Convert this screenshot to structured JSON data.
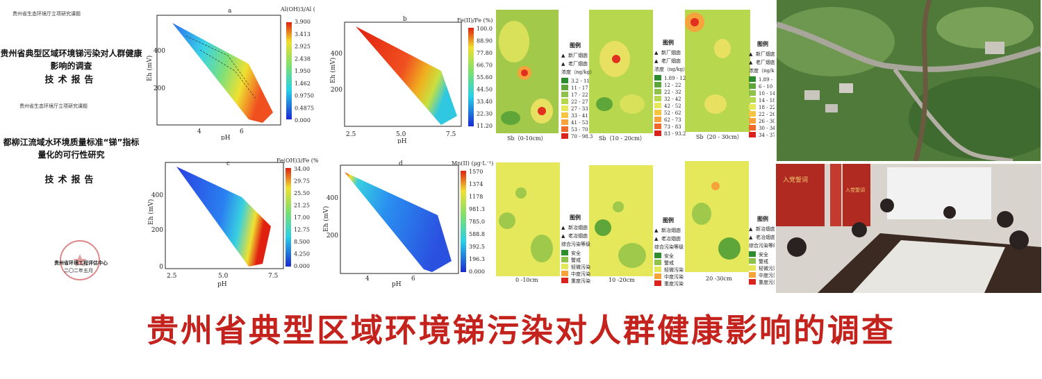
{
  "left_docs": {
    "doc1": {
      "header": "贵州省生态环境厅立项研究课题",
      "title_line1": "贵州省典型区域环境锑污染对人群健康",
      "title_line2": "影响的调查",
      "subtitle": "技术报告"
    },
    "doc2": {
      "header": "贵州省生态环境厅立项研究课题",
      "title_line1": "都柳江流域水环境质量标准“锑”指标",
      "title_line2": "量化的可行性研究",
      "subtitle": "技术报告",
      "org": "贵州省环境工程评估中心",
      "date": "二〇二年五月"
    }
  },
  "charts": {
    "a": {
      "label": "a",
      "cbar_title": "Al(OH)3/Al (%)",
      "ylabel": "Eh (mV)",
      "xlabel": "pH",
      "yticks": [
        "400",
        "200"
      ],
      "xticks": [
        "4",
        "6"
      ],
      "cbar_ticks": [
        "3.900",
        "3.413",
        "2.925",
        "2.438",
        "1.950",
        "1.462",
        "0.9750",
        "0.4875",
        "0.000"
      ]
    },
    "b": {
      "label": "b",
      "cbar_title": "Fe(II)/Fe (%)",
      "ylabel": "Eh (mV)",
      "xlabel": "pH",
      "yticks": [
        "400",
        "200"
      ],
      "xticks": [
        "2.5",
        "5.0",
        "7.5"
      ],
      "cbar_ticks": [
        "100.0",
        "88.90",
        "77.80",
        "66.70",
        "55.60",
        "44.50",
        "33.40",
        "22.30",
        "11.20"
      ]
    },
    "c": {
      "label": "c",
      "cbar_title": "Fe(OH)3/Fe (%)",
      "ylabel": "Eh (mV)",
      "xlabel": "pH",
      "yticks": [
        "400",
        "200",
        "0"
      ],
      "xticks": [
        "2.5",
        "5.0",
        "7.5"
      ],
      "cbar_ticks": [
        "34.00",
        "29.75",
        "25.50",
        "21.25",
        "17.00",
        "12.75",
        "8.500",
        "4.250",
        "0.000"
      ]
    },
    "d": {
      "label": "d",
      "cbar_title": "Mn(II) (μg·L⁻¹)",
      "ylabel": "Eh (mV)",
      "xlabel": "pH",
      "yticks": [
        "400",
        "200"
      ],
      "xticks": [
        "4",
        "6"
      ],
      "cbar_ticks": [
        "1570",
        "1374",
        "1178",
        "981.3",
        "785.0",
        "588.8",
        "392.5",
        "196.3",
        "0.000"
      ]
    }
  },
  "maps_top": {
    "legend_title": "图例",
    "legend_new": "新厂烟囱",
    "legend_old": "老厂烟囱",
    "conc_title": "浓度（ng/kg）",
    "m1": {
      "caption": "Sb（0-10cm）",
      "classes": [
        "3.2 - 11",
        "11 - 17",
        "17 - 22",
        "22 - 27",
        "27 - 33",
        "33 - 41",
        "41 - 53",
        "53 - 70",
        "70 - 98.3"
      ]
    },
    "m2": {
      "caption": "Sb（10 - 20cm）",
      "classes": [
        "1.89 - 12",
        "12 - 22",
        "22 - 32",
        "32 - 42",
        "42 - 52",
        "52 - 62",
        "62 - 73",
        "73 - 83",
        "83 - 93.2"
      ]
    },
    "m3": {
      "caption": "Sb（20 - 30cm）",
      "classes": [
        "1.89 - 6",
        "6 - 10",
        "10 - 14",
        "14 - 18",
        "18 - 22",
        "22 - 26",
        "26 - 30",
        "30 - 34",
        "34 - 37.7"
      ]
    }
  },
  "maps_bottom": {
    "legend_title": "图例",
    "legend_new": "新冶烟囱",
    "legend_old": "老冶烟囱",
    "level_title": "综合污染等级",
    "levels": [
      "安全",
      "警戒",
      "轻微污染",
      "中度污染",
      "重度污染"
    ],
    "m1": {
      "caption": "0 -10cm"
    },
    "m2": {
      "caption": "10 -20cm"
    },
    "m3": {
      "caption": "20 -30cm"
    }
  },
  "photo_meeting": {
    "banner": "入党誓词",
    "side_banner": "入党誓词"
  },
  "seal_text": "贵州省环境工程评估中心",
  "bottom_title": "贵州省典型区域环境锑污染对人群健康影响的调查",
  "colors": {
    "title_red": "#c4221c"
  }
}
